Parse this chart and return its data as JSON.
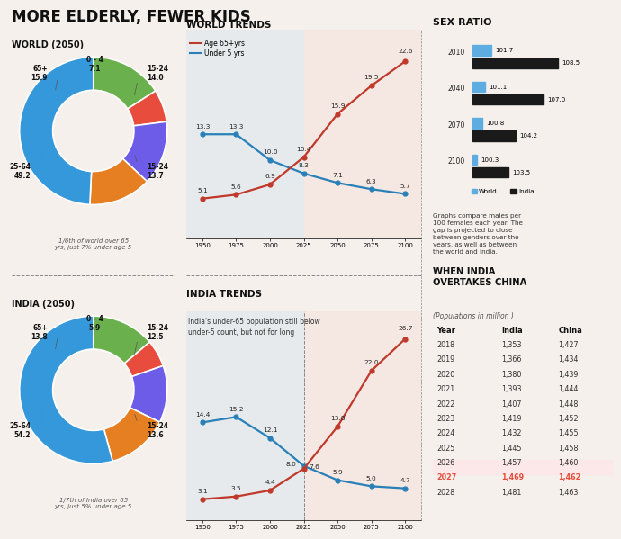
{
  "title": "MORE ELDERLY, FEWER KIDS",
  "bg_color": "#f5f0eb",
  "world_donut": {
    "title": "WORLD (2050)",
    "label_names": [
      "65+",
      "0-4",
      "15-24 top",
      "15-24 bot",
      "25-64"
    ],
    "label_vals": [
      15.9,
      7.1,
      14.0,
      13.7,
      49.2
    ],
    "label_display": [
      "15.9",
      "7.1",
      "14.0",
      "13.7",
      "49.2"
    ],
    "colors": [
      "#6ab04c",
      "#e74c3c",
      "#6c5ce7",
      "#e67e22",
      "#3498db"
    ],
    "note": "1/6th of world over 65\nyrs, just 7% under age 5"
  },
  "india_donut": {
    "title": "INDIA (2050)",
    "label_names": [
      "65+",
      "0-4",
      "15-24 top",
      "15-24 bot",
      "25-64"
    ],
    "label_vals": [
      13.8,
      5.9,
      12.5,
      13.6,
      54.2
    ],
    "label_display": [
      "13.8",
      "5.9",
      "12.5",
      "13.6",
      "54.2"
    ],
    "colors": [
      "#6ab04c",
      "#e74c3c",
      "#6c5ce7",
      "#e67e22",
      "#3498db"
    ],
    "note": "1/7th of India over 65\nyrs, just 5% under age 5"
  },
  "world_trends": {
    "title": "WORLD TRENDS",
    "years": [
      1950,
      1975,
      2000,
      2025,
      2050,
      2075,
      2100
    ],
    "age65": [
      5.1,
      5.6,
      6.9,
      10.4,
      15.9,
      19.5,
      22.6
    ],
    "under5": [
      13.3,
      13.3,
      10.0,
      8.3,
      7.1,
      6.3,
      5.7
    ],
    "color65": "#c0392b",
    "colorU5": "#2980b9",
    "legend_65": "Age 65+yrs",
    "legend_u5": "Under 5 yrs"
  },
  "india_trends": {
    "title": "INDIA TRENDS",
    "subtitle": "India's under-65 population still below\nunder-5 count, but not for long",
    "years": [
      1950,
      1975,
      2000,
      2025,
      2050,
      2075,
      2100
    ],
    "age65": [
      3.1,
      3.5,
      4.4,
      7.6,
      13.8,
      22.0,
      26.7
    ],
    "under5": [
      14.4,
      15.2,
      12.1,
      8.0,
      5.9,
      5.0,
      4.7
    ],
    "color65": "#c0392b",
    "colorU5": "#2980b9"
  },
  "sex_ratio": {
    "title": "SEX RATIO",
    "years": [
      2010,
      2040,
      2070,
      2100
    ],
    "world_vals": [
      101.7,
      101.1,
      100.8,
      100.3
    ],
    "india_vals": [
      108.5,
      107.0,
      104.2,
      103.5
    ],
    "world_color": "#5dade2",
    "india_color": "#1a1a1a",
    "note": "Graphs compare males per\n100 females each year. The\ngap is projected to close\nbetween genders over the\nyears, as well as between\nthe world and India."
  },
  "china_table": {
    "title": "WHEN INDIA\nOVERTAKES CHINA",
    "subtitle": "(Populations in million )",
    "headers": [
      "Year",
      "India",
      "China"
    ],
    "rows": [
      [
        2018,
        "1,353",
        "1,427"
      ],
      [
        2019,
        "1,366",
        "1,434"
      ],
      [
        2020,
        "1,380",
        "1,439"
      ],
      [
        2021,
        "1,393",
        "1,444"
      ],
      [
        2022,
        "1,407",
        "1,448"
      ],
      [
        2023,
        "1,419",
        "1,452"
      ],
      [
        2024,
        "1,432",
        "1,455"
      ],
      [
        2025,
        "1,445",
        "1,458"
      ],
      [
        2026,
        "1,457",
        "1,460"
      ],
      [
        2027,
        "1,469",
        "1,462"
      ],
      [
        2028,
        "1,481",
        "1,463"
      ]
    ],
    "highlight_row": 9,
    "highlight_color": "#e74c3c"
  }
}
